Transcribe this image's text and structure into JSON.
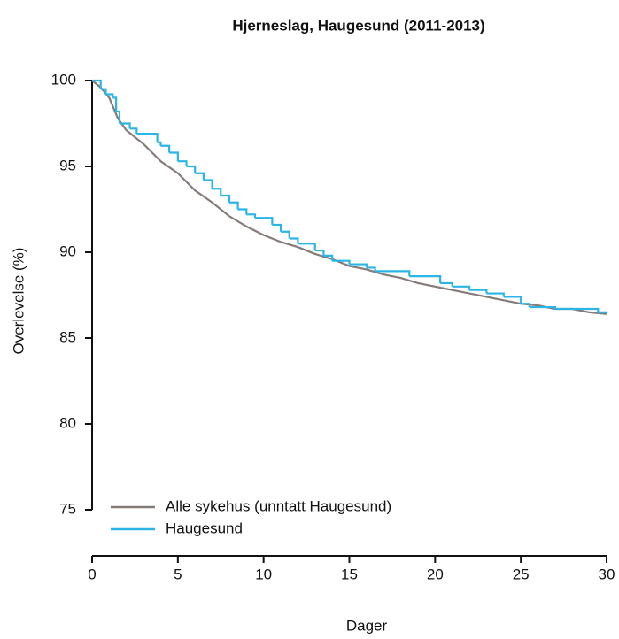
{
  "chart_data": {
    "type": "line",
    "title": "Hjerneslag, Haugesund (2011-2013)",
    "xlabel": "Dager",
    "ylabel": "Overlevelse (%)",
    "xlim": [
      0,
      30
    ],
    "ylim": [
      75,
      100
    ],
    "xticks": [
      0,
      5,
      10,
      15,
      20,
      25,
      30
    ],
    "yticks": [
      75,
      80,
      85,
      90,
      95,
      100
    ],
    "legend": "bottom-left",
    "series": [
      {
        "name": "Alle sykehus (unntatt Haugesund)",
        "color": "#857b79",
        "step": false,
        "x": [
          0,
          0.5,
          1,
          1.5,
          2,
          3,
          4,
          5,
          6,
          7,
          8,
          9,
          10,
          11,
          12,
          13,
          14,
          15,
          16,
          17,
          18,
          19,
          20,
          21,
          22,
          23,
          24,
          25,
          26,
          27,
          28,
          29,
          30
        ],
        "values": [
          100,
          99.6,
          99.0,
          97.8,
          97.1,
          96.3,
          95.3,
          94.6,
          93.6,
          92.9,
          92.1,
          91.5,
          91.0,
          90.6,
          90.3,
          89.9,
          89.6,
          89.2,
          89.0,
          88.7,
          88.5,
          88.2,
          88.0,
          87.8,
          87.6,
          87.4,
          87.2,
          87.0,
          86.9,
          86.7,
          86.7,
          86.5,
          86.4
        ]
      },
      {
        "name": "Haugesund",
        "color": "#2ab5e6",
        "step": true,
        "x": [
          0,
          0.5,
          0.8,
          1.2,
          1.4,
          1.6,
          2.2,
          2.6,
          3.8,
          4,
          4.5,
          5,
          5.5,
          6,
          6.5,
          7,
          7.5,
          8,
          8.5,
          9,
          9.5,
          10.5,
          11,
          11.5,
          12,
          13,
          13.5,
          14,
          15,
          16,
          16.5,
          18.5,
          20.3,
          21,
          22,
          23,
          24,
          25,
          25.5,
          27,
          29.5,
          30
        ],
        "values": [
          100,
          99.5,
          99.2,
          99.0,
          98.2,
          97.5,
          97.2,
          96.9,
          96.4,
          96.2,
          95.8,
          95.3,
          95.0,
          94.6,
          94.2,
          93.7,
          93.3,
          92.9,
          92.5,
          92.2,
          92.0,
          91.6,
          91.2,
          90.8,
          90.5,
          90.1,
          89.8,
          89.5,
          89.3,
          89.1,
          88.9,
          88.6,
          88.2,
          88.0,
          87.8,
          87.6,
          87.4,
          87.0,
          86.8,
          86.7,
          86.5,
          86.4
        ]
      }
    ]
  }
}
